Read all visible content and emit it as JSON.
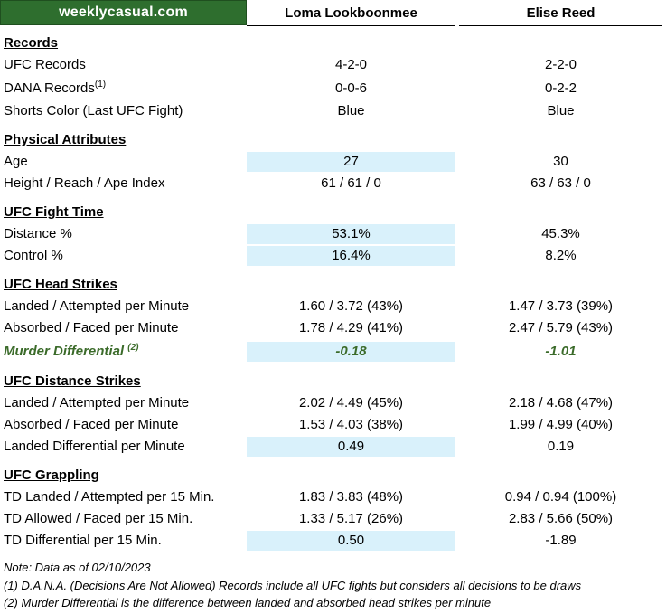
{
  "header": {
    "brand": "weeklycasual.com",
    "fighter1": "Loma Lookboonmee",
    "fighter2": "Elise Reed"
  },
  "sections": {
    "records": {
      "title": "Records",
      "ufc_records": {
        "label": "UFC Records",
        "f1": "4-2-0",
        "f2": "2-2-0"
      },
      "dana_records": {
        "label": "DANA Records",
        "sup": "(1)",
        "f1": "0-0-6",
        "f2": "0-2-2"
      },
      "shorts": {
        "label": "Shorts Color (Last UFC Fight)",
        "f1": "Blue",
        "f2": "Blue"
      }
    },
    "physical": {
      "title": "Physical Attributes",
      "age": {
        "label": "Age",
        "f1": "27",
        "f2": "30"
      },
      "height": {
        "label": "Height / Reach / Ape Index",
        "f1": "61 / 61 / 0",
        "f2": "63 / 63 / 0"
      }
    },
    "fight_time": {
      "title": "UFC Fight Time",
      "distance": {
        "label": "Distance %",
        "f1": "53.1%",
        "f2": "45.3%"
      },
      "control": {
        "label": "Control %",
        "f1": "16.4%",
        "f2": "8.2%"
      }
    },
    "head_strikes": {
      "title": "UFC Head Strikes",
      "landed": {
        "label": "Landed / Attempted per Minute",
        "f1": "1.60 / 3.72 (43%)",
        "f2": "1.47 / 3.73 (39%)"
      },
      "absorbed": {
        "label": "Absorbed / Faced per Minute",
        "f1": "1.78 / 4.29 (41%)",
        "f2": "2.47 / 5.79 (43%)"
      },
      "murder": {
        "label": "Murder Differential",
        "sup": "(2)",
        "f1": "-0.18",
        "f2": "-1.01"
      }
    },
    "distance_strikes": {
      "title": "UFC Distance Strikes",
      "landed": {
        "label": "Landed / Attempted per Minute",
        "f1": "2.02 / 4.49 (45%)",
        "f2": "2.18 / 4.68 (47%)"
      },
      "absorbed": {
        "label": "Absorbed / Faced per Minute",
        "f1": "1.53 / 4.03 (38%)",
        "f2": "1.99 / 4.99 (40%)"
      },
      "differential": {
        "label": "Landed Differential per Minute",
        "f1": "0.49",
        "f2": "0.19"
      }
    },
    "grappling": {
      "title": "UFC Grappling",
      "td_landed": {
        "label": "TD Landed / Attempted per 15 Min.",
        "f1": "1.83 / 3.83 (48%)",
        "f2": "0.94 / 0.94 (100%)"
      },
      "td_allowed": {
        "label": "TD Allowed / Faced per 15 Min.",
        "f1": "1.33 / 5.17 (26%)",
        "f2": "2.83 / 5.66 (50%)"
      },
      "td_diff": {
        "label": "TD Differential per 15 Min.",
        "f1": "0.50",
        "f2": "-1.89"
      }
    }
  },
  "notes": {
    "date": "Note: Data as of 02/10/2023",
    "note1": "(1) D.A.N.A. (Decisions Are Not Allowed) Records include all UFC fights but considers all decisions to be draws",
    "note2": "(2) Murder Differential is the difference between landed and absorbed head strikes per minute"
  },
  "colors": {
    "brand_bg": "#2e6e2e",
    "highlight": "#d9f1fb",
    "murder_text": "#3b6b2a"
  }
}
